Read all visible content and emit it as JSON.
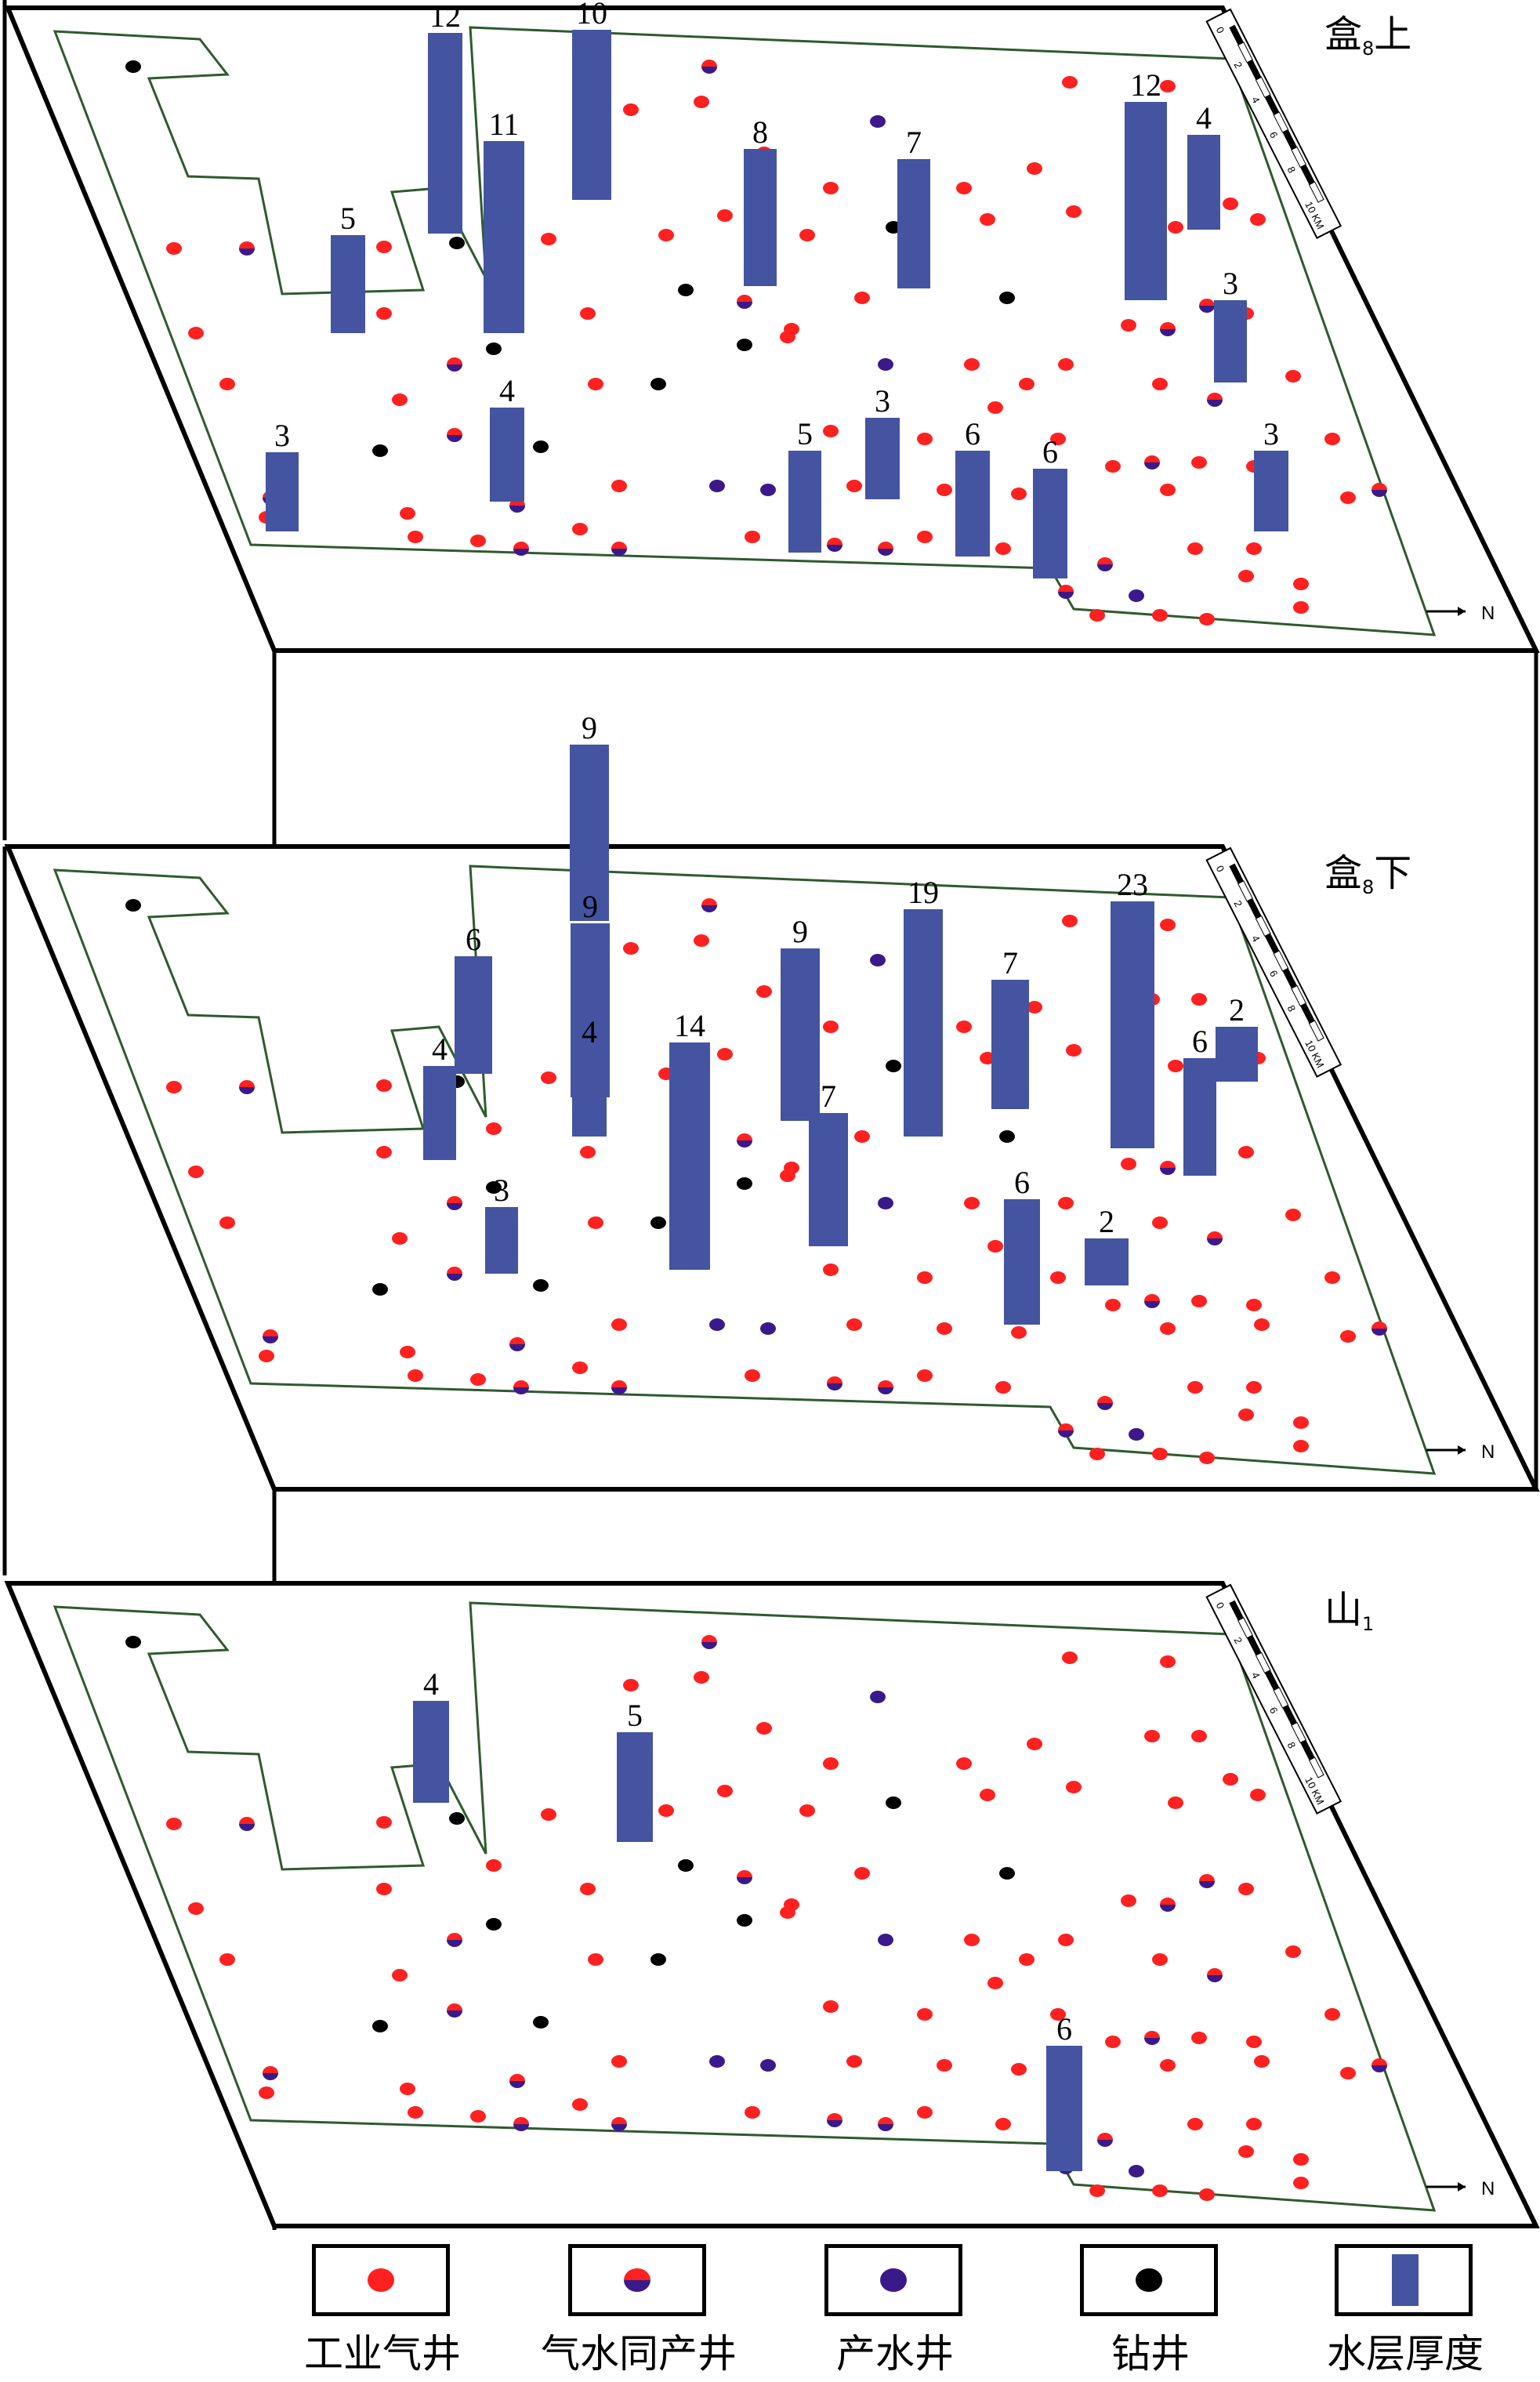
{
  "colors": {
    "industrial_gas": "#ff2020",
    "water_producing": "#3a1a8a",
    "drilling": "#000000",
    "thickness_bar": "#4454a0",
    "outline": "#2f5a2f"
  },
  "scale_ticks": [
    "0",
    "2",
    "4",
    "6",
    "8",
    "10 KM"
  ],
  "north_label": "N",
  "legend": [
    {
      "key": "industrial",
      "label": "工业气井",
      "icon": "red-circle-icon"
    },
    {
      "key": "mixed",
      "label": "气水同产井",
      "icon": "half-red-blue-circle-icon"
    },
    {
      "key": "water",
      "label": "产水井",
      "icon": "purple-circle-icon"
    },
    {
      "key": "drill",
      "label": "钻井",
      "icon": "black-circle-icon"
    },
    {
      "key": "bar",
      "label": "水层厚度",
      "icon": "blue-bar-icon"
    }
  ],
  "layers": [
    {
      "name": "layer-he8-upper",
      "label_main": "盒",
      "label_sub": "8",
      "label_suffix": "上",
      "bars": [
        "12",
        "10",
        "11",
        "8",
        "7",
        "12",
        "4",
        "5",
        "3",
        "4",
        "3",
        "5",
        "3",
        "6",
        "6",
        "3"
      ]
    },
    {
      "name": "layer-he8-lower",
      "label_main": "盒",
      "label_sub": "8",
      "label_suffix": "下",
      "bars": [
        "9",
        "9",
        "9",
        "19",
        "23",
        "6",
        "7",
        "2",
        "4",
        "14",
        "6",
        "4",
        "7",
        "3",
        "6",
        "2"
      ]
    },
    {
      "name": "layer-shan1",
      "label_main": "山",
      "label_sub": "1",
      "label_suffix": "",
      "bars": [
        "4",
        "5",
        "6"
      ]
    }
  ]
}
